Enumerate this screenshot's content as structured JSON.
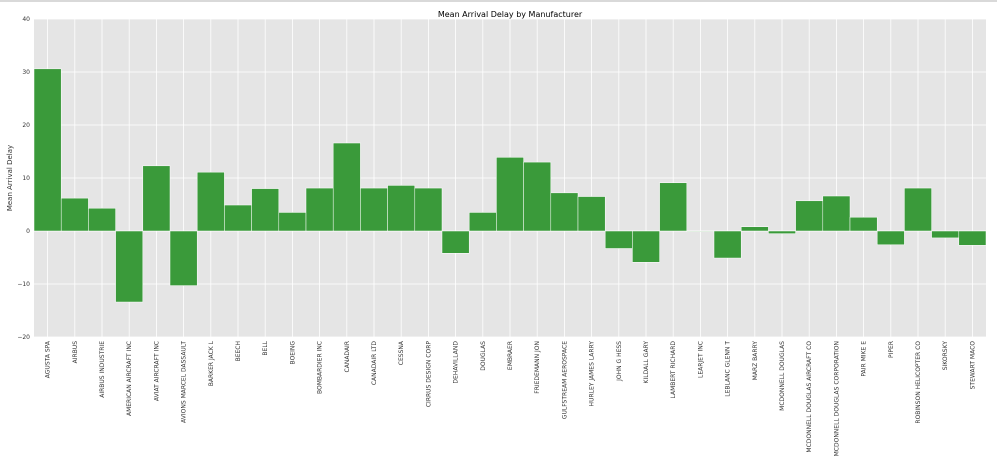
{
  "chart_data": {
    "type": "bar",
    "title": "Mean Arrival Delay by Manufacturer",
    "xlabel": "",
    "ylabel": "Mean Arrival Delay",
    "ylim": [
      -20,
      40
    ],
    "yticks": [
      "40",
      "30",
      "20",
      "10",
      "0",
      "−10",
      "−20"
    ],
    "grid": true,
    "bar_color": "#3a9a3a",
    "background_color": "#e5e5e5",
    "categories": [
      "AGUSTA SPA",
      "AIRBUS",
      "AIRBUS INDUSTRIE",
      "AMERICAN AIRCRAFT INC",
      "AVIAT AIRCRAFT INC",
      "AVIONS MARCEL DASSAULT",
      "BARKER JACK L",
      "BEECH",
      "BELL",
      "BOEING",
      "BOMBARDIER INC",
      "CANADAIR",
      "CANADAIR LTD",
      "CESSNA",
      "CIRRUS DESIGN CORP",
      "DEHAVILLAND",
      "DOUGLAS",
      "EMBRAER",
      "FRIEDEMANN JON",
      "GULFSTREAM AEROSPACE",
      "HURLEY JAMES LARRY",
      "JOHN G HESS",
      "KILDALL GARY",
      "LAMBERT RICHARD",
      "LEARJET INC",
      "LEBLANC GLENN T",
      "MARZ BARRY",
      "MCDONNELL DOUGLAS",
      "MCDONNELL DOUGLAS AIRCRAFT CO",
      "MCDONNELL DOUGLAS CORPORATION",
      "PAIR MIKE E",
      "PIPER",
      "ROBINSON HELICOPTER CO",
      "SIKORSKY",
      "STEWART MACO"
    ],
    "values": [
      30.6,
      6.2,
      4.3,
      -13.4,
      12.3,
      -10.3,
      11.1,
      4.9,
      8.0,
      3.5,
      8.1,
      16.6,
      8.1,
      8.6,
      8.1,
      -4.2,
      3.5,
      13.9,
      13.0,
      7.2,
      6.5,
      -3.3,
      -5.9,
      9.1,
      0.0,
      -5.1,
      0.8,
      -0.5,
      5.7,
      6.6,
      2.6,
      -2.6,
      8.1,
      -1.3,
      -2.7
    ]
  }
}
